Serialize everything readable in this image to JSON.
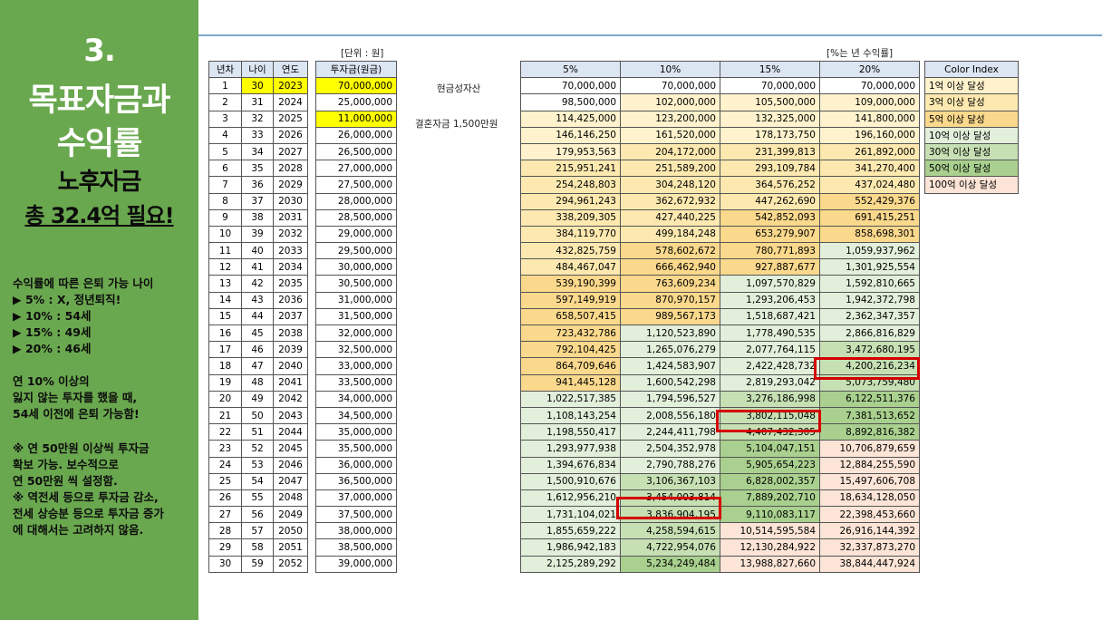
{
  "sidebar": {
    "title_lines": [
      "3.",
      "목표자금과",
      "수익률"
    ],
    "subtitle_lines": [
      "노후자금",
      "총 32.4억 필요!"
    ],
    "note1": [
      "수익률에 따른 은퇴 가능 나이",
      "▶ 5% : X, 정년퇴직!",
      "▶ 10% : 54세",
      "▶ 15% : 49세",
      "▶ 20% : 46세"
    ],
    "note2": [
      "연 10% 이상의",
      "잃지 않는 투자를 했을 때,",
      "54세 이전에 은퇴 가능함!"
    ],
    "note3": [
      "※ 연 50만원 이상씩 투자금",
      "확보 가능. 보수적으로",
      "연 50만원 씩 설정함.",
      "※ 역전세 등으로 투자금 감소,",
      "전세 상승분 등으로 투자금 증가",
      "에 대해서는 고려하지 않음."
    ]
  },
  "labels": {
    "unit": "[단위 : 원]",
    "rate_note": "[%는 년 수익률]",
    "cash_asset": "현금성자산",
    "wedding_fund": "결혼자금 1,500만원"
  },
  "colors": {
    "sidebar": "#6aa84f",
    "header_blue": "#dce6f2",
    "highlight": "#ffff00",
    "tiers": [
      "#ffffff",
      "#fff2cc",
      "#fde9b0",
      "#fad88c",
      "#e2efda",
      "#c6e0b4",
      "#a9d08e",
      "#fce4d6"
    ],
    "marker": "#d40000"
  },
  "left_table": {
    "headers": [
      "년차",
      "나이",
      "연도",
      "투자금(원금)"
    ],
    "rows": [
      [
        "1",
        "30",
        "2023",
        "70,000,000"
      ],
      [
        "2",
        "31",
        "2024",
        "25,000,000"
      ],
      [
        "3",
        "32",
        "2025",
        "11,000,000"
      ],
      [
        "4",
        "33",
        "2026",
        "26,000,000"
      ],
      [
        "5",
        "34",
        "2027",
        "26,500,000"
      ],
      [
        "6",
        "35",
        "2028",
        "27,000,000"
      ],
      [
        "7",
        "36",
        "2029",
        "27,500,000"
      ],
      [
        "8",
        "37",
        "2030",
        "28,000,000"
      ],
      [
        "9",
        "38",
        "2031",
        "28,500,000"
      ],
      [
        "10",
        "39",
        "2032",
        "29,000,000"
      ],
      [
        "11",
        "40",
        "2033",
        "29,500,000"
      ],
      [
        "12",
        "41",
        "2034",
        "30,000,000"
      ],
      [
        "13",
        "42",
        "2035",
        "30,500,000"
      ],
      [
        "14",
        "43",
        "2036",
        "31,000,000"
      ],
      [
        "15",
        "44",
        "2037",
        "31,500,000"
      ],
      [
        "16",
        "45",
        "2038",
        "32,000,000"
      ],
      [
        "17",
        "46",
        "2039",
        "32,500,000"
      ],
      [
        "18",
        "47",
        "2040",
        "33,000,000"
      ],
      [
        "19",
        "48",
        "2041",
        "33,500,000"
      ],
      [
        "20",
        "49",
        "2042",
        "34,000,000"
      ],
      [
        "21",
        "50",
        "2043",
        "34,500,000"
      ],
      [
        "22",
        "51",
        "2044",
        "35,000,000"
      ],
      [
        "23",
        "52",
        "2045",
        "35,500,000"
      ],
      [
        "24",
        "53",
        "2046",
        "36,000,000"
      ],
      [
        "25",
        "54",
        "2047",
        "36,500,000"
      ],
      [
        "26",
        "55",
        "2048",
        "37,000,000"
      ],
      [
        "27",
        "56",
        "2049",
        "37,500,000"
      ],
      [
        "28",
        "57",
        "2050",
        "38,000,000"
      ],
      [
        "29",
        "58",
        "2051",
        "38,500,000"
      ],
      [
        "30",
        "59",
        "2052",
        "39,000,000"
      ]
    ]
  },
  "rate_table": {
    "headers": [
      "5%",
      "10%",
      "15%",
      "20%"
    ],
    "rows": [
      [
        "70,000,000",
        "70,000,000",
        "70,000,000",
        "70,000,000"
      ],
      [
        "98,500,000",
        "102,000,000",
        "105,500,000",
        "109,000,000"
      ],
      [
        "114,425,000",
        "123,200,000",
        "132,325,000",
        "141,800,000"
      ],
      [
        "146,146,250",
        "161,520,000",
        "178,173,750",
        "196,160,000"
      ],
      [
        "179,953,563",
        "204,172,000",
        "231,399,813",
        "261,892,000"
      ],
      [
        "215,951,241",
        "251,589,200",
        "293,109,784",
        "341,270,400"
      ],
      [
        "254,248,803",
        "304,248,120",
        "364,576,252",
        "437,024,480"
      ],
      [
        "294,961,243",
        "362,672,932",
        "447,262,690",
        "552,429,376"
      ],
      [
        "338,209,305",
        "427,440,225",
        "542,852,093",
        "691,415,251"
      ],
      [
        "384,119,770",
        "499,184,248",
        "653,279,907",
        "858,698,301"
      ],
      [
        "432,825,759",
        "578,602,672",
        "780,771,893",
        "1,059,937,962"
      ],
      [
        "484,467,047",
        "666,462,940",
        "927,887,677",
        "1,301,925,554"
      ],
      [
        "539,190,399",
        "763,609,234",
        "1,097,570,829",
        "1,592,810,665"
      ],
      [
        "597,149,919",
        "870,970,157",
        "1,293,206,453",
        "1,942,372,798"
      ],
      [
        "658,507,415",
        "989,567,173",
        "1,518,687,421",
        "2,362,347,357"
      ],
      [
        "723,432,786",
        "1,120,523,890",
        "1,778,490,535",
        "2,866,816,829"
      ],
      [
        "792,104,425",
        "1,265,076,279",
        "2,077,764,115",
        "3,472,680,195"
      ],
      [
        "864,709,646",
        "1,424,583,907",
        "2,422,428,732",
        "4,200,216,234"
      ],
      [
        "941,445,128",
        "1,600,542,298",
        "2,819,293,042",
        "5,073,759,480"
      ],
      [
        "1,022,517,385",
        "1,794,596,527",
        "3,276,186,998",
        "6,122,511,376"
      ],
      [
        "1,108,143,254",
        "2,008,556,180",
        "3,802,115,048",
        "7,381,513,652"
      ],
      [
        "1,198,550,417",
        "2,244,411,798",
        "4,407,432,305",
        "8,892,816,382"
      ],
      [
        "1,293,977,938",
        "2,504,352,978",
        "5,104,047,151",
        "10,706,879,659"
      ],
      [
        "1,394,676,834",
        "2,790,788,276",
        "5,905,654,223",
        "12,884,255,590"
      ],
      [
        "1,500,910,676",
        "3,106,367,103",
        "6,828,002,357",
        "15,497,606,708"
      ],
      [
        "1,612,956,210",
        "3,454,003,814",
        "7,889,202,710",
        "18,634,128,050"
      ],
      [
        "1,731,104,021",
        "3,836,904,195",
        "9,110,083,117",
        "22,398,453,660"
      ],
      [
        "1,855,659,222",
        "4,258,594,615",
        "10,514,595,584",
        "26,916,144,392"
      ],
      [
        "1,986,942,183",
        "4,722,954,076",
        "12,130,284,922",
        "32,337,873,270"
      ],
      [
        "2,125,289,292",
        "5,234,249,484",
        "13,988,827,660",
        "38,844,447,924"
      ]
    ],
    "tiers": [
      [
        0,
        0,
        0,
        0
      ],
      [
        0,
        1,
        1,
        1
      ],
      [
        1,
        1,
        1,
        1
      ],
      [
        1,
        1,
        1,
        1
      ],
      [
        1,
        2,
        2,
        2
      ],
      [
        2,
        2,
        2,
        2
      ],
      [
        2,
        2,
        2,
        2
      ],
      [
        2,
        2,
        2,
        3
      ],
      [
        2,
        2,
        3,
        3
      ],
      [
        2,
        2,
        3,
        3
      ],
      [
        2,
        3,
        3,
        4
      ],
      [
        2,
        3,
        3,
        4
      ],
      [
        3,
        3,
        4,
        4
      ],
      [
        3,
        3,
        4,
        4
      ],
      [
        3,
        3,
        4,
        4
      ],
      [
        3,
        4,
        4,
        4
      ],
      [
        3,
        4,
        4,
        5
      ],
      [
        3,
        4,
        4,
        5
      ],
      [
        3,
        4,
        4,
        5
      ],
      [
        4,
        4,
        5,
        6
      ],
      [
        4,
        4,
        5,
        6
      ],
      [
        4,
        4,
        5,
        6
      ],
      [
        4,
        4,
        6,
        7
      ],
      [
        4,
        4,
        6,
        7
      ],
      [
        4,
        5,
        6,
        7
      ],
      [
        4,
        5,
        6,
        7
      ],
      [
        4,
        5,
        6,
        7
      ],
      [
        4,
        5,
        7,
        7
      ],
      [
        4,
        5,
        7,
        7
      ],
      [
        4,
        6,
        7,
        7
      ]
    ]
  },
  "color_index": {
    "header": "Color Index",
    "items": [
      "1억 이상 달성",
      "3억 이상 달성",
      "5억 이상 달성",
      "10억 이상 달성",
      "30억 이상 달성",
      "50억 이상 달성",
      "100억 이상 달성"
    ]
  }
}
